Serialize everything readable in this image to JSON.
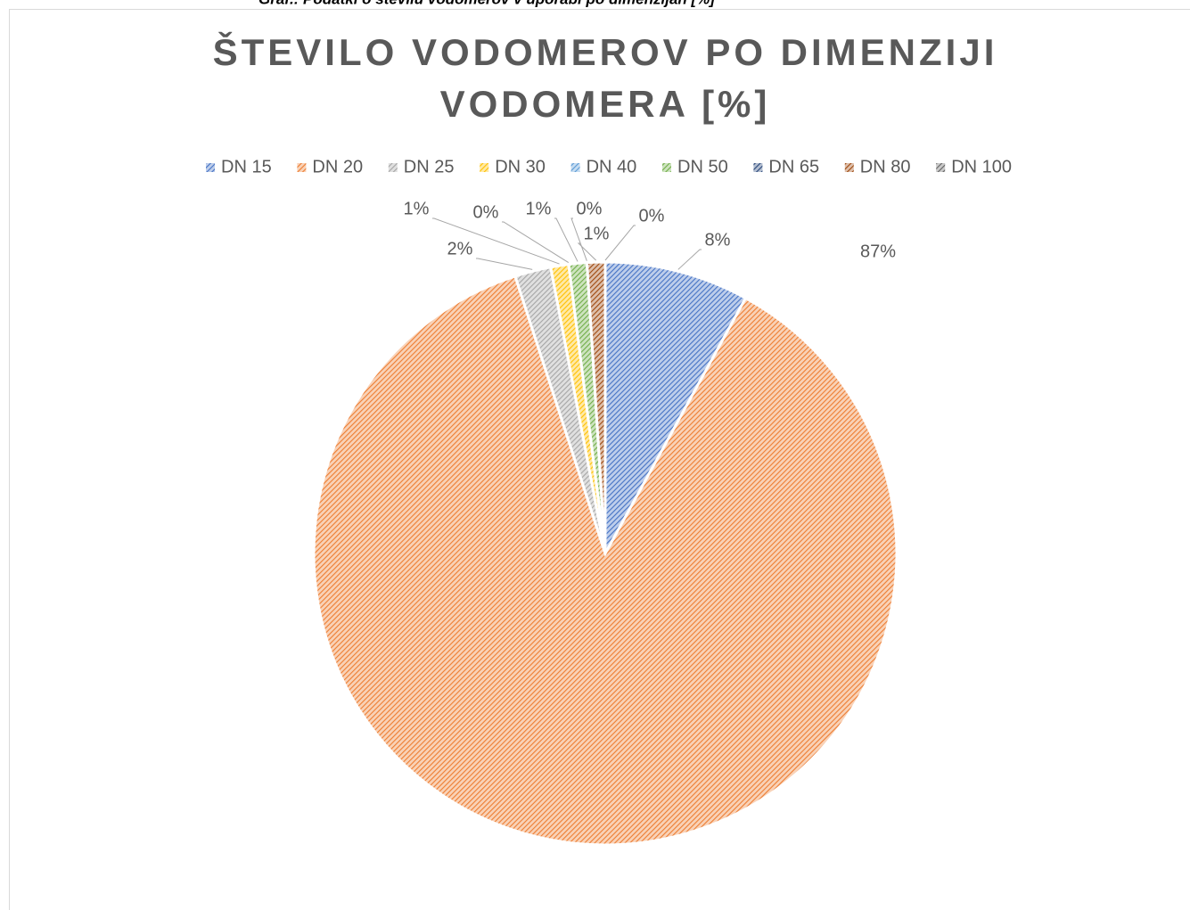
{
  "caption": "Graf.: Podatki o številu vodomerov v uporabi po dimenzijah [%]",
  "chart_data": {
    "type": "pie",
    "title": [
      "ŠTEVILO VODOMEROV PO DIMENZIJI",
      "VODOMERA [%]"
    ],
    "categories": [
      "DN 15",
      "DN 20",
      "DN 25",
      "DN 30",
      "DN 40",
      "DN 50",
      "DN 65",
      "DN 80",
      "DN 100"
    ],
    "values": [
      8,
      87,
      2,
      1,
      0,
      1,
      0,
      1,
      0
    ],
    "value_labels": [
      "8%",
      "87%",
      "2%",
      "1%",
      "0%",
      "1%",
      "0%",
      "1%",
      "0%"
    ],
    "colors": [
      "#4472c4",
      "#ed7d31",
      "#a5a5a5",
      "#ffc000",
      "#5b9bd5",
      "#70ad47",
      "#264478",
      "#9e480e",
      "#636363"
    ],
    "legend": "top",
    "pattern": "hatch"
  }
}
